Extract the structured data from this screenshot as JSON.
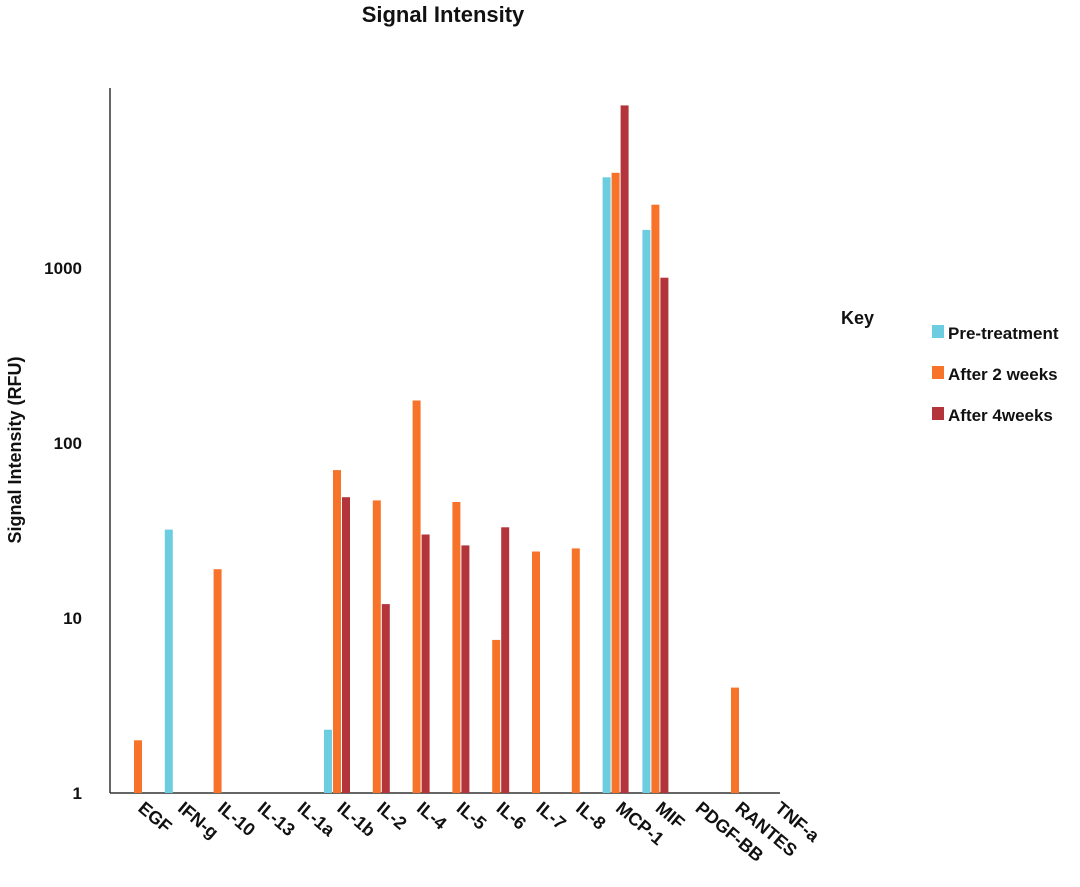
{
  "chart_data": {
    "type": "bar",
    "scale": "log",
    "title": "Signal Intensity",
    "xlabel": "",
    "ylabel": "Signal Intensity (RFU)",
    "ylim": [
      1,
      10000
    ],
    "yticks": [
      1,
      10,
      100,
      1000
    ],
    "ytick_labels": [
      "1",
      "10",
      "100",
      "1000"
    ],
    "categories": [
      "EGF",
      "IFN-g",
      "IL-10",
      "IL-13",
      "IL-1a",
      "IL-1b",
      "IL-2",
      "IL-4",
      "IL-5",
      "IL-6",
      "IL-7",
      "IL-8",
      "MCP-1",
      "MIF",
      "PDGF-BB",
      "RANTES",
      "TNF-a"
    ],
    "legend": {
      "title": "Key",
      "position": "right"
    },
    "series": [
      {
        "name": "Pre-treatment",
        "color": "#6ccde0",
        "values": [
          null,
          32,
          null,
          null,
          null,
          2.3,
          null,
          null,
          null,
          null,
          null,
          null,
          3300,
          1650,
          null,
          null,
          null
        ]
      },
      {
        "name": "After 2 weeks",
        "color": "#f7732a",
        "values": [
          2,
          null,
          19,
          null,
          null,
          70,
          47,
          175,
          46,
          7.5,
          24,
          25,
          3500,
          2300,
          null,
          4,
          null
        ]
      },
      {
        "name": "After 4weeks",
        "color": "#b3343a",
        "values": [
          null,
          null,
          null,
          null,
          null,
          49,
          12,
          30,
          26,
          33,
          null,
          null,
          8500,
          880,
          null,
          null,
          null
        ]
      }
    ]
  }
}
